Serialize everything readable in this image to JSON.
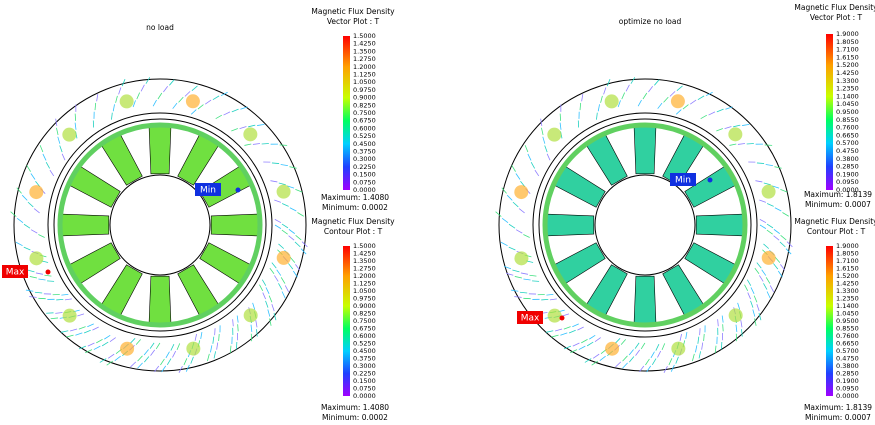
{
  "panels": [
    {
      "title": "no load",
      "legends": [
        {
          "title": "Magnetic Flux Density",
          "subtitle": "Vector Plot : T",
          "ticks": [
            "1.5000",
            "1.4250",
            "1.3500",
            "1.2750",
            "1.2000",
            "1.1250",
            "1.0500",
            "0.9750",
            "0.9000",
            "0.8250",
            "0.7500",
            "0.6750",
            "0.6000",
            "0.5250",
            "0.4500",
            "0.3750",
            "0.3000",
            "0.2250",
            "0.1500",
            "0.0750",
            "0.0000"
          ],
          "maximum": "Maximum: 1.4080",
          "minimum": "Minimum: 0.0002"
        },
        {
          "title": "Magnetic Flux Density",
          "subtitle": "Contour Plot : T",
          "ticks": [
            "1.5000",
            "1.4250",
            "1.3500",
            "1.2750",
            "1.2000",
            "1.1250",
            "1.0500",
            "0.9750",
            "0.9000",
            "0.8250",
            "0.7500",
            "0.6750",
            "0.6000",
            "0.5250",
            "0.4500",
            "0.3750",
            "0.3000",
            "0.2250",
            "0.1500",
            "0.0750",
            "0.0000"
          ],
          "maximum": "Maximum: 1.4080",
          "minimum": "Minimum: 0.0002"
        }
      ],
      "markers": {
        "max": "Max",
        "min": "Min"
      }
    },
    {
      "title": "optimize no load",
      "legends": [
        {
          "title": "Magnetic Flux Density",
          "subtitle": "Vector Plot : T",
          "ticks": [
            "1.9000",
            "1.8050",
            "1.7100",
            "1.6150",
            "1.5200",
            "1.4250",
            "1.3300",
            "1.2350",
            "1.1400",
            "1.0450",
            "0.9500",
            "0.8550",
            "0.7600",
            "0.6650",
            "0.5700",
            "0.4750",
            "0.3800",
            "0.2850",
            "0.1900",
            "0.0950",
            "0.0000"
          ],
          "maximum": "Maximum: 1.8139",
          "minimum": "Minimum: 0.0007"
        },
        {
          "title": "Magnetic Flux Density",
          "subtitle": "Contour Plot : T",
          "ticks": [
            "1.9000",
            "1.8050",
            "1.7100",
            "1.6150",
            "1.5200",
            "1.4250",
            "1.3300",
            "1.2350",
            "1.1400",
            "1.0450",
            "0.9500",
            "0.8550",
            "0.7600",
            "0.6650",
            "0.5700",
            "0.4750",
            "0.3800",
            "0.2850",
            "0.1900",
            "0.0950",
            "0.0000"
          ],
          "maximum": "Maximum: 1.8139",
          "minimum": "Minimum: 0.0007"
        }
      ],
      "markers": {
        "max": "Max",
        "min": "Min"
      }
    }
  ]
}
